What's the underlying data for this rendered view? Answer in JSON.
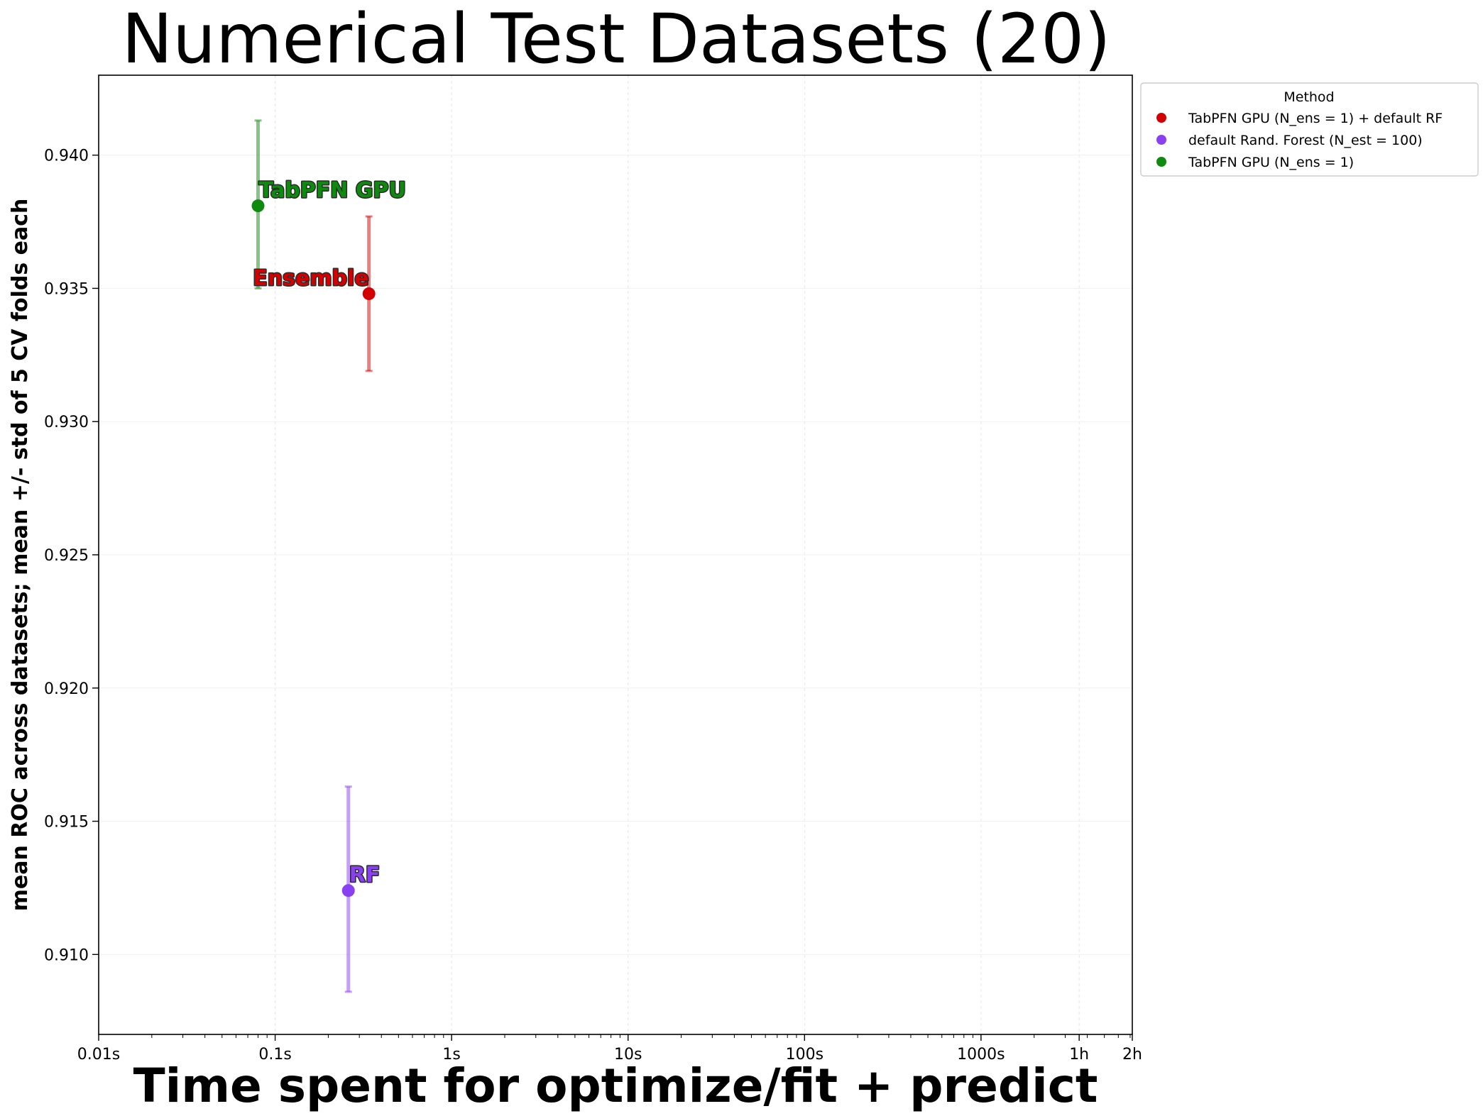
{
  "chart_data": {
    "type": "scatter",
    "title": "Numerical Test Datasets (20)",
    "xlabel": "Time spent for optimize/fit + predict",
    "ylabel": "mean ROC across datasets; mean +/- std of 5 CV folds each",
    "x_scale": "log",
    "xlim": [
      0.01,
      7200
    ],
    "ylim": [
      0.907,
      0.943
    ],
    "grid": true,
    "x_ticks": [
      {
        "value": 0.01,
        "label": "0.01s"
      },
      {
        "value": 0.1,
        "label": "0.1s"
      },
      {
        "value": 1,
        "label": "1s"
      },
      {
        "value": 10,
        "label": "10s"
      },
      {
        "value": 100,
        "label": "100s"
      },
      {
        "value": 1000,
        "label": "1000s"
      },
      {
        "value": 3600,
        "label": "1h"
      },
      {
        "value": 7200,
        "label": "2h"
      }
    ],
    "y_ticks": [
      {
        "value": 0.91,
        "label": "0.910"
      },
      {
        "value": 0.915,
        "label": "0.915"
      },
      {
        "value": 0.92,
        "label": "0.920"
      },
      {
        "value": 0.925,
        "label": "0.925"
      },
      {
        "value": 0.93,
        "label": "0.930"
      },
      {
        "value": 0.935,
        "label": "0.935"
      },
      {
        "value": 0.94,
        "label": "0.940"
      }
    ],
    "legend": {
      "title": "Method",
      "position": "outside upper right"
    },
    "series": [
      {
        "name": "TabPFN GPU (N_ens =  1) + default RF",
        "color": "#d40000",
        "x": 0.34,
        "y": 0.9348,
        "yerr_low": 0.9319,
        "yerr_high": 0.9377,
        "annotation": "Ensemble",
        "annotation_align": "end"
      },
      {
        "name": "default Rand. Forest (N_est = 100)",
        "color": "#8a3ff2",
        "x": 0.26,
        "y": 0.9124,
        "yerr_low": 0.9086,
        "yerr_high": 0.9163,
        "annotation": "RF",
        "annotation_align": "start"
      },
      {
        "name": "TabPFN GPU (N_ens =  1)",
        "color": "#0e8a0e",
        "x": 0.08,
        "y": 0.9381,
        "yerr_low": 0.935,
        "yerr_high": 0.9413,
        "annotation": "TabPFN GPU",
        "annotation_align": "start"
      }
    ]
  }
}
